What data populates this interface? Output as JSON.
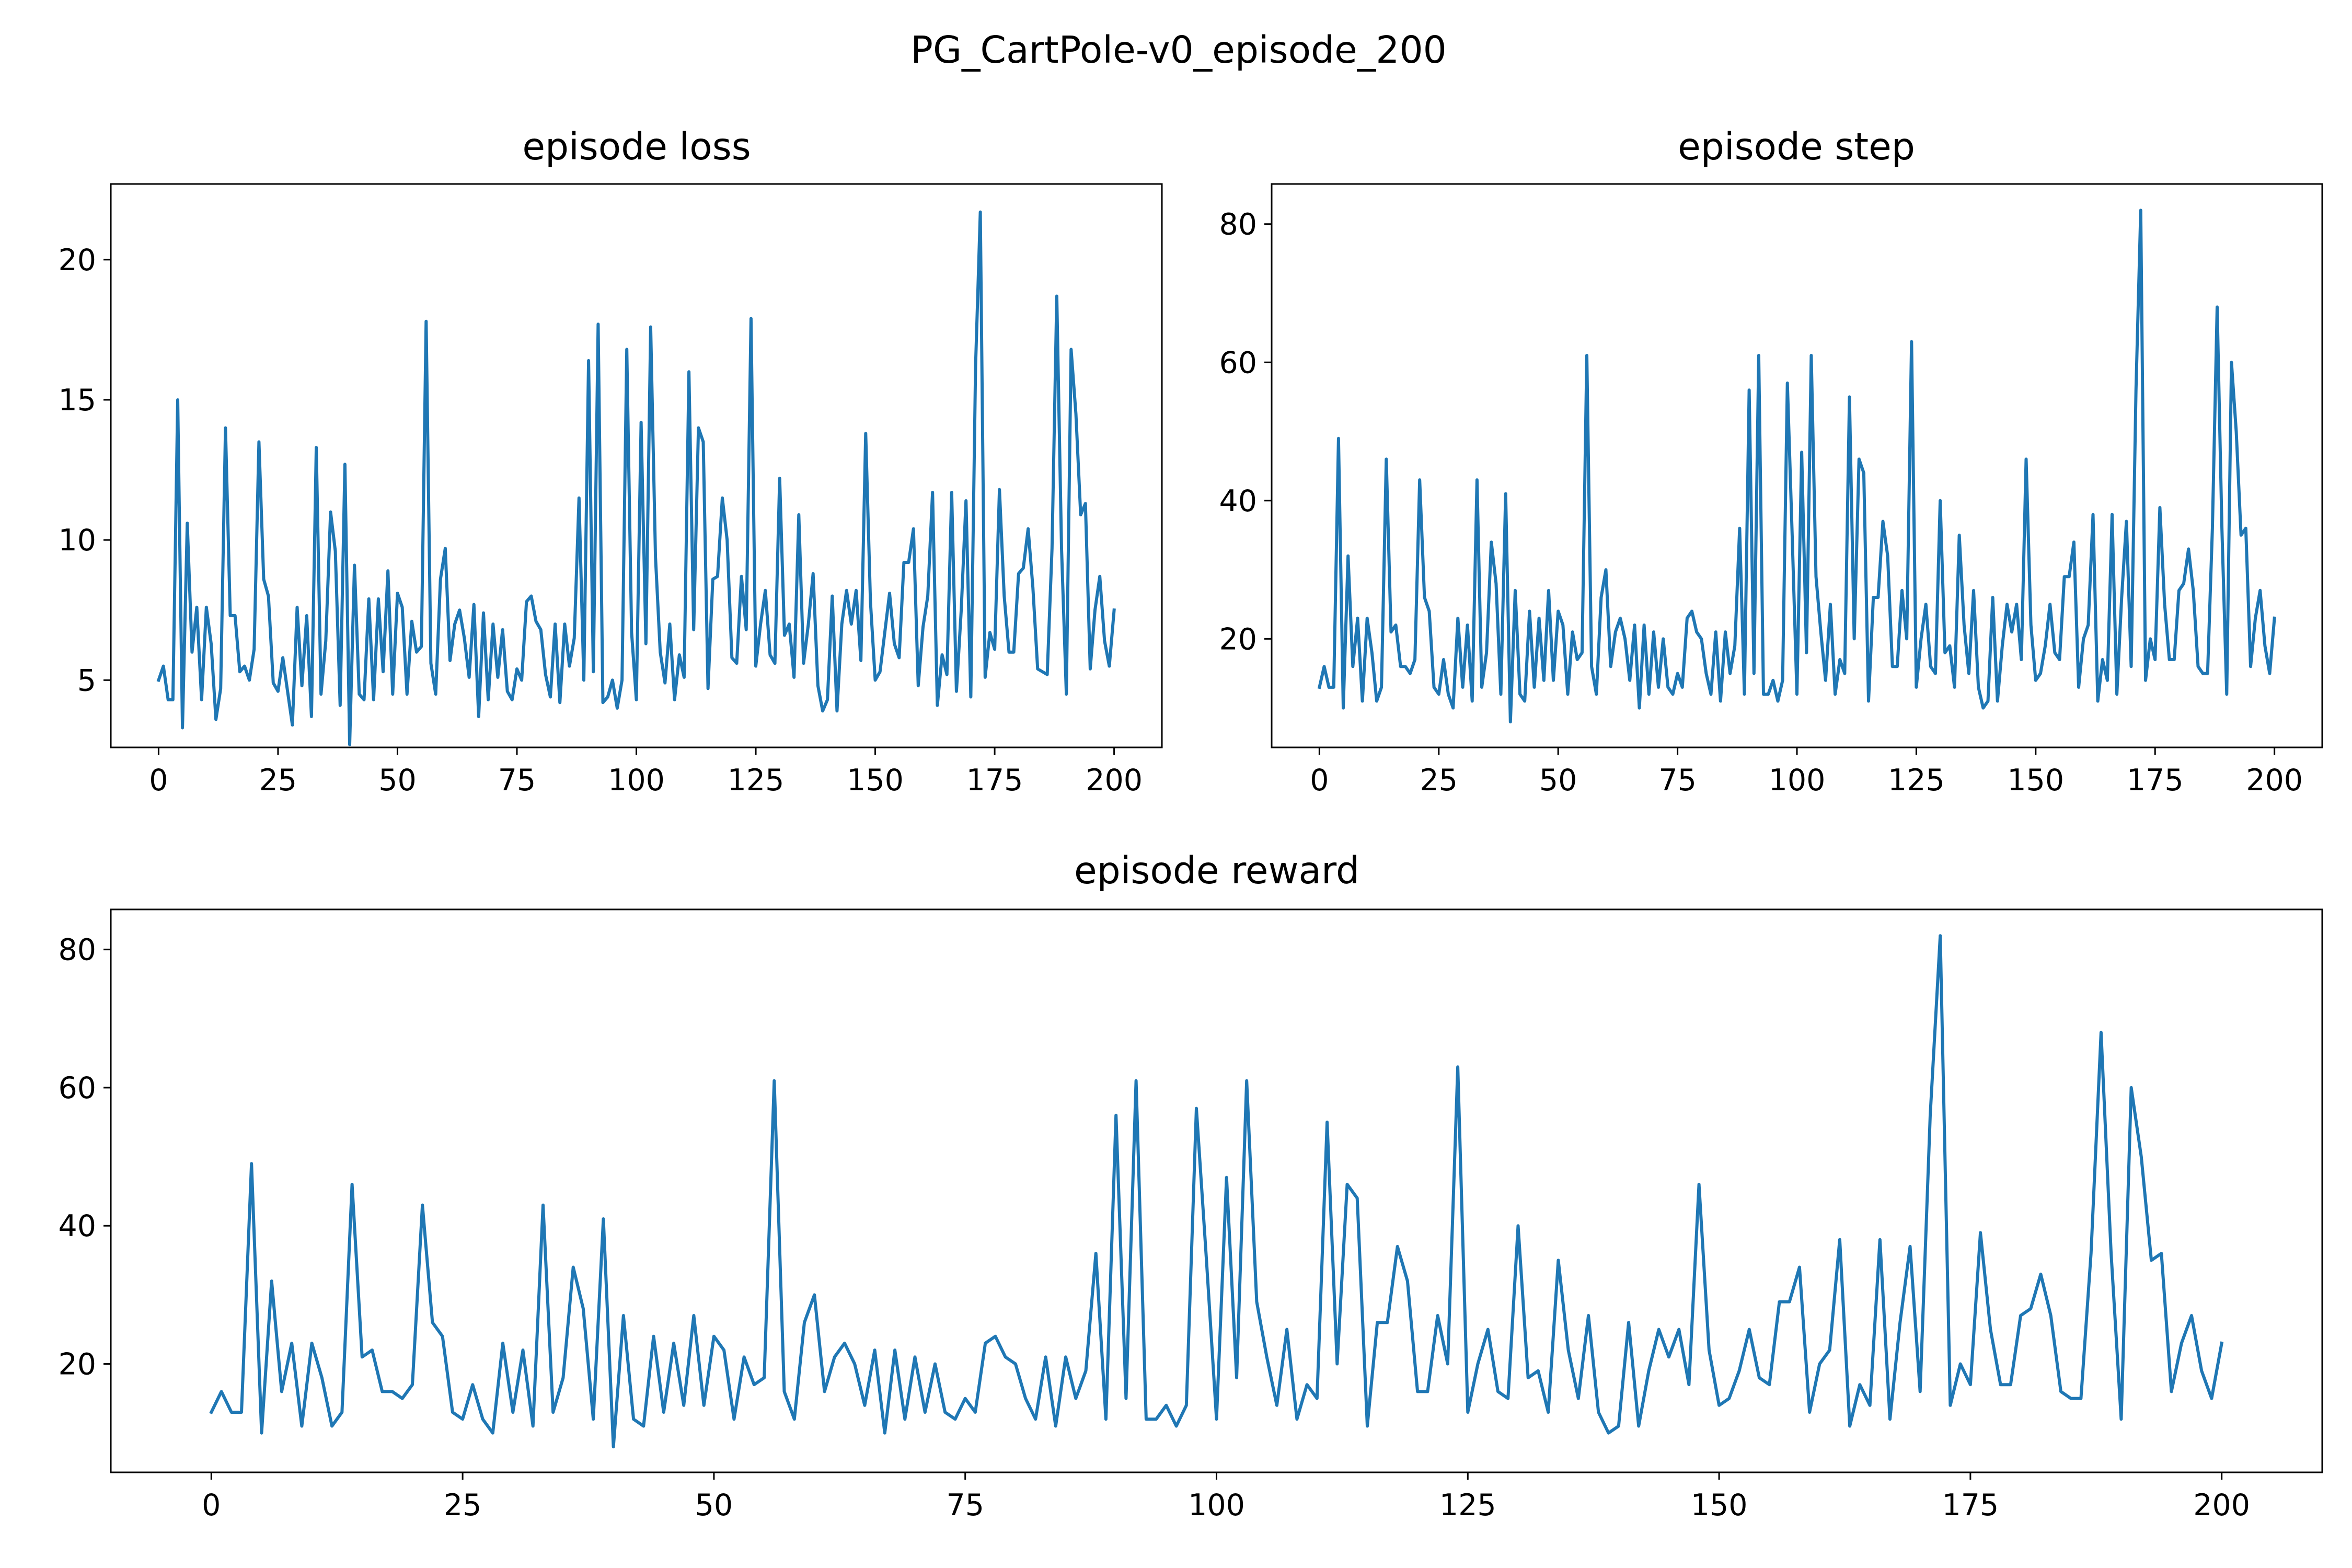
{
  "figure": {
    "title": "PG_CartPole-v0_episode_200",
    "line_color": "#1f77b4"
  },
  "chart_data": [
    {
      "type": "line",
      "title": "episode loss",
      "xlabel": "",
      "ylabel": "",
      "xlim": [
        -10,
        210
      ],
      "ylim": [
        2.6,
        22.7
      ],
      "xticks": [
        0,
        25,
        50,
        75,
        100,
        125,
        150,
        175,
        200
      ],
      "yticks": [
        5,
        10,
        15,
        20
      ],
      "grid": false,
      "legend": "none",
      "x_start": 0,
      "x_step": 1,
      "values": [
        5.0,
        5.5,
        4.3,
        4.3,
        15.0,
        3.3,
        10.6,
        6.0,
        7.6,
        4.3,
        7.6,
        6.3,
        3.6,
        4.7,
        14.0,
        7.3,
        7.3,
        5.3,
        5.5,
        5.0,
        6.1,
        13.5,
        8.6,
        8.0,
        4.9,
        4.6,
        5.8,
        4.6,
        3.4,
        7.6,
        4.8,
        7.3,
        3.7,
        13.3,
        4.5,
        6.4,
        11.0,
        9.6,
        4.1,
        12.7,
        2.7,
        9.1,
        4.5,
        4.3,
        7.9,
        4.3,
        7.9,
        5.3,
        8.9,
        4.5,
        8.1,
        7.6,
        4.5,
        7.1,
        6.0,
        6.2,
        17.8,
        5.6,
        4.5,
        8.6,
        9.7,
        5.7,
        7.0,
        7.5,
        6.5,
        5.1,
        7.7,
        3.7,
        7.4,
        4.3,
        7.0,
        5.1,
        6.8,
        4.6,
        4.3,
        5.4,
        5.0,
        7.8,
        8.0,
        7.1,
        6.8,
        5.2,
        4.4,
        7.0,
        4.2,
        7.0,
        5.5,
        6.5,
        11.5,
        5.0,
        16.4,
        5.3,
        17.7,
        4.2,
        4.4,
        5.0,
        4.0,
        5.0,
        16.8,
        6.7,
        4.3,
        14.2,
        6.3,
        17.6,
        9.4,
        6.0,
        4.9,
        7.0,
        4.3,
        5.9,
        5.1,
        16.0,
        6.8,
        14.0,
        13.5,
        4.7,
        8.6,
        8.7,
        11.5,
        10.0,
        5.8,
        5.6,
        8.7,
        6.8,
        17.9,
        5.5,
        7.0,
        8.2,
        5.9,
        5.6,
        12.2,
        6.6,
        7.0,
        5.1,
        10.9,
        5.6,
        7.0,
        8.8,
        4.8,
        3.9,
        4.3,
        8.0,
        3.9,
        7.0,
        8.2,
        7.0,
        8.2,
        5.7,
        13.8,
        7.8,
        5.0,
        5.3,
        6.7,
        8.1,
        6.3,
        5.8,
        9.2,
        9.2,
        10.4,
        4.8,
        6.9,
        8.0,
        11.7,
        4.1,
        5.9,
        5.2,
        11.7,
        4.6,
        7.5,
        11.4,
        4.4,
        16.2,
        21.7,
        5.1,
        6.7,
        6.1,
        11.8,
        8.0,
        6.0,
        6.0,
        8.8,
        9.0,
        10.4,
        8.3,
        5.4,
        5.3,
        5.2,
        9.7,
        18.7,
        9.7,
        4.5,
        16.8,
        14.5,
        10.9,
        11.3,
        5.4,
        7.5,
        8.7,
        6.4,
        5.5,
        7.5
      ]
    },
    {
      "type": "line",
      "title": "episode step",
      "xlabel": "",
      "ylabel": "",
      "xlim": [
        -10,
        210
      ],
      "ylim": [
        4.3,
        85.8
      ],
      "xticks": [
        0,
        25,
        50,
        75,
        100,
        125,
        150,
        175,
        200
      ],
      "yticks": [
        20,
        40,
        60,
        80
      ],
      "grid": false,
      "legend": "none",
      "x_start": 0,
      "x_step": 1,
      "values": [
        13,
        16,
        13,
        13,
        49,
        10,
        32,
        16,
        23,
        11,
        23,
        18,
        11,
        13,
        46,
        21,
        22,
        16,
        16,
        15,
        17,
        43,
        26,
        24,
        13,
        12,
        17,
        12,
        10,
        23,
        13,
        22,
        11,
        43,
        13,
        18,
        34,
        28,
        12,
        41,
        8,
        27,
        12,
        11,
        24,
        13,
        23,
        14,
        27,
        14,
        24,
        22,
        12,
        21,
        17,
        18,
        61,
        16,
        12,
        26,
        30,
        16,
        21,
        23,
        20,
        14,
        22,
        10,
        22,
        12,
        21,
        13,
        20,
        13,
        12,
        15,
        13,
        23,
        24,
        21,
        20,
        15,
        12,
        21,
        11,
        21,
        15,
        19,
        36,
        12,
        56,
        15,
        61,
        12,
        12,
        14,
        11,
        14,
        57,
        35,
        12,
        47,
        18,
        61,
        29,
        21,
        14,
        25,
        12,
        17,
        15,
        55,
        20,
        46,
        44,
        11,
        26,
        26,
        37,
        32,
        16,
        16,
        27,
        20,
        63,
        13,
        20,
        25,
        16,
        15,
        40,
        18,
        19,
        13,
        35,
        22,
        15,
        27,
        13,
        10,
        11,
        26,
        11,
        19,
        25,
        21,
        25,
        17,
        46,
        22,
        14,
        15,
        19,
        25,
        18,
        17,
        29,
        29,
        34,
        13,
        20,
        22,
        38,
        11,
        17,
        14,
        38,
        12,
        26,
        37,
        16,
        56,
        82,
        14,
        20,
        17,
        39,
        25,
        17,
        17,
        27,
        28,
        33,
        27,
        16,
        15,
        15,
        36,
        68,
        36,
        12,
        60,
        50,
        35,
        36,
        16,
        23,
        27,
        19,
        15,
        23
      ]
    },
    {
      "type": "line",
      "title": "episode reward",
      "xlabel": "",
      "ylabel": "",
      "xlim": [
        -10,
        210
      ],
      "ylim": [
        4.3,
        85.8
      ],
      "xticks": [
        0,
        25,
        50,
        75,
        100,
        125,
        150,
        175,
        200
      ],
      "yticks": [
        20,
        40,
        60,
        80
      ],
      "grid": false,
      "legend": "none",
      "x_start": 0,
      "x_step": 1,
      "values": [
        13,
        16,
        13,
        13,
        49,
        10,
        32,
        16,
        23,
        11,
        23,
        18,
        11,
        13,
        46,
        21,
        22,
        16,
        16,
        15,
        17,
        43,
        26,
        24,
        13,
        12,
        17,
        12,
        10,
        23,
        13,
        22,
        11,
        43,
        13,
        18,
        34,
        28,
        12,
        41,
        8,
        27,
        12,
        11,
        24,
        13,
        23,
        14,
        27,
        14,
        24,
        22,
        12,
        21,
        17,
        18,
        61,
        16,
        12,
        26,
        30,
        16,
        21,
        23,
        20,
        14,
        22,
        10,
        22,
        12,
        21,
        13,
        20,
        13,
        12,
        15,
        13,
        23,
        24,
        21,
        20,
        15,
        12,
        21,
        11,
        21,
        15,
        19,
        36,
        12,
        56,
        15,
        61,
        12,
        12,
        14,
        11,
        14,
        57,
        35,
        12,
        47,
        18,
        61,
        29,
        21,
        14,
        25,
        12,
        17,
        15,
        55,
        20,
        46,
        44,
        11,
        26,
        26,
        37,
        32,
        16,
        16,
        27,
        20,
        63,
        13,
        20,
        25,
        16,
        15,
        40,
        18,
        19,
        13,
        35,
        22,
        15,
        27,
        13,
        10,
        11,
        26,
        11,
        19,
        25,
        21,
        25,
        17,
        46,
        22,
        14,
        15,
        19,
        25,
        18,
        17,
        29,
        29,
        34,
        13,
        20,
        22,
        38,
        11,
        17,
        14,
        38,
        12,
        26,
        37,
        16,
        56,
        82,
        14,
        20,
        17,
        39,
        25,
        17,
        17,
        27,
        28,
        33,
        27,
        16,
        15,
        15,
        36,
        68,
        36,
        12,
        60,
        50,
        35,
        36,
        16,
        23,
        27,
        19,
        15,
        23
      ]
    }
  ]
}
